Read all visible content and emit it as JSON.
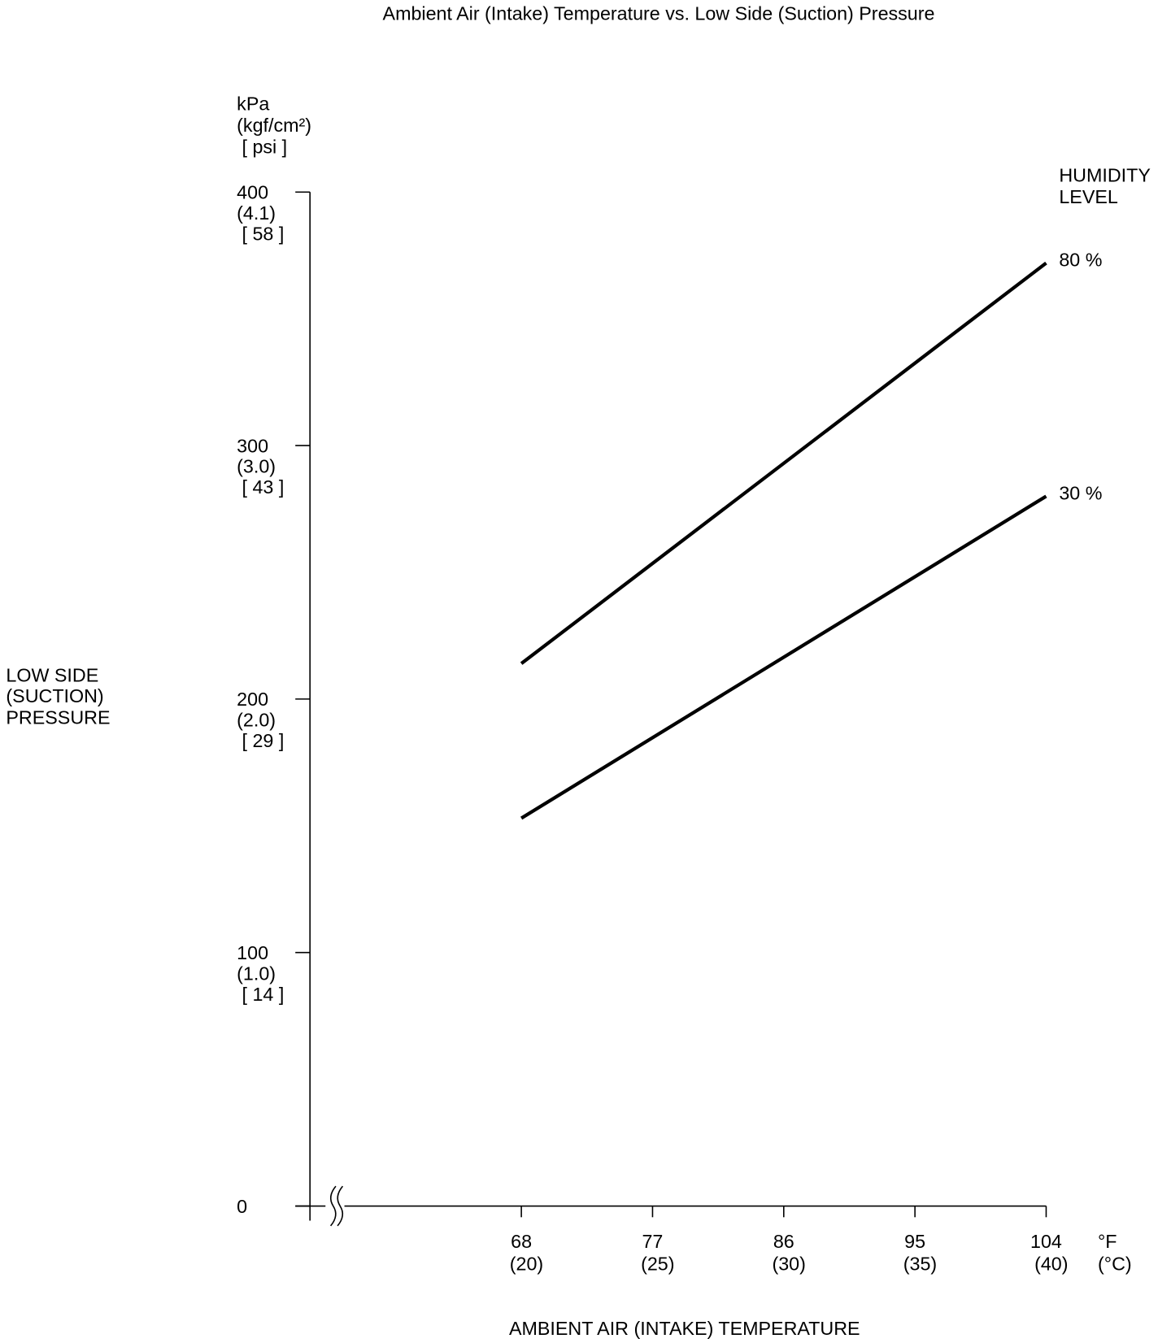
{
  "chart_data": {
    "type": "line",
    "title": "Ambient Air (Intake) Temperature vs. Low Side (Suction) Pressure",
    "y_axis_label": [
      "LOW SIDE",
      "(SUCTION)",
      "PRESSURE"
    ],
    "y_unit_labels": [
      "kPa",
      "(kgf/cm²)",
      "[ psi ]"
    ],
    "x_axis_label": "AMBIENT AIR (INTAKE) TEMPERATURE",
    "x_unit_labels": [
      "°F",
      "(°C)"
    ],
    "legend_title": [
      "HUMIDITY",
      "LEVEL"
    ],
    "xlim": [
      53.5,
      104
    ],
    "xticks": [
      68,
      77,
      86,
      95,
      104
    ],
    "xtick_labels_celsius": [
      "(20)",
      "(25)",
      "(30)",
      "(35)",
      "(40)"
    ],
    "ylim": [
      0,
      400
    ],
    "yticks": [
      0,
      100,
      200,
      300,
      400
    ],
    "ytick_labels_kgf": [
      null,
      "(1.0)",
      "(2.0)",
      "(3.0)",
      "(4.1)"
    ],
    "ytick_labels_psi": [
      null,
      "[ 14 ]",
      "[ 29 ]",
      "[ 43 ]",
      "[ 58 ]"
    ],
    "grid": false,
    "series": [
      {
        "name": "80 %",
        "color": "#000000",
        "x": [
          68,
          104
        ],
        "values": [
          214,
          372
        ]
      },
      {
        "name": "30 %",
        "color": "#000000",
        "x": [
          68,
          104
        ],
        "values": [
          153,
          280
        ]
      }
    ]
  }
}
